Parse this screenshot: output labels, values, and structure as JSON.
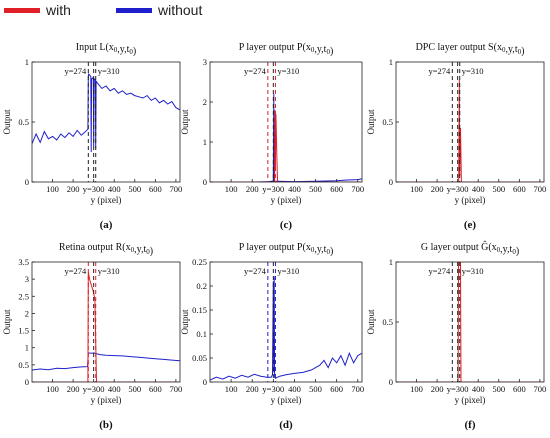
{
  "legend": {
    "items": [
      {
        "label": "with",
        "color": "#e01f26"
      },
      {
        "label": "without",
        "color": "#1f1fcc"
      }
    ]
  },
  "colors": {
    "with": "#e01f26",
    "without": "#1f1fcc",
    "axis": "#222222"
  },
  "chart_data": [
    {
      "id": "a",
      "panel_label": "(a)",
      "type": "line",
      "title": "Input L(x0,y,t0)",
      "xlabel": "y (pixel)",
      "ylabel": "Output",
      "xlim": [
        0,
        720
      ],
      "ylim": [
        0,
        1
      ],
      "xticks": [
        100,
        200,
        300,
        400,
        500,
        600,
        700
      ],
      "xtick_labels": [
        "100",
        "200",
        "y=300",
        "400",
        "500",
        "600",
        "700"
      ],
      "yticks": [
        0,
        0.5,
        1
      ],
      "ytick_labels": [
        "0",
        "0.5",
        "1"
      ],
      "dashed_markers": [
        {
          "x": 274,
          "color": "#222222",
          "label": "y=274"
        },
        {
          "x": 300,
          "color": "#222222",
          "label": ""
        },
        {
          "x": 310,
          "color": "#222222",
          "label": "y=310"
        }
      ],
      "series": [
        {
          "name": "without",
          "color": "#1f1fcc",
          "x": [
            0,
            20,
            40,
            60,
            80,
            100,
            120,
            140,
            160,
            180,
            200,
            220,
            240,
            260,
            272,
            274,
            276,
            286,
            288,
            290,
            298,
            300,
            302,
            308,
            310,
            312,
            320,
            340,
            360,
            380,
            400,
            420,
            440,
            460,
            480,
            500,
            520,
            540,
            560,
            580,
            600,
            620,
            640,
            660,
            680,
            700,
            720
          ],
          "y": [
            0.32,
            0.4,
            0.33,
            0.42,
            0.36,
            0.38,
            0.35,
            0.4,
            0.37,
            0.41,
            0.38,
            0.43,
            0.39,
            0.42,
            0.44,
            0.88,
            0.9,
            0.88,
            0.25,
            0.86,
            0.87,
            0.3,
            0.86,
            0.85,
            0.28,
            0.84,
            0.82,
            0.78,
            0.8,
            0.76,
            0.78,
            0.74,
            0.76,
            0.73,
            0.74,
            0.72,
            0.71,
            0.7,
            0.72,
            0.68,
            0.7,
            0.66,
            0.68,
            0.65,
            0.67,
            0.62,
            0.6
          ]
        }
      ]
    },
    {
      "id": "c",
      "panel_label": "(c)",
      "type": "line",
      "title": "P layer output P(x0,y,t0)",
      "xlabel": "y (pixel)",
      "ylabel": "Output",
      "xlim": [
        0,
        720
      ],
      "ylim": [
        0,
        3
      ],
      "xticks": [
        100,
        200,
        300,
        400,
        500,
        600,
        700
      ],
      "xtick_labels": [
        "100",
        "200",
        "y=300",
        "400",
        "500",
        "600",
        "700"
      ],
      "yticks": [
        0,
        1,
        2,
        3
      ],
      "ytick_labels": [
        "0",
        "1",
        "2",
        "3"
      ],
      "dashed_markers": [
        {
          "x": 274,
          "color": "#e01f26",
          "label": "y=274"
        },
        {
          "x": 300,
          "color": "#222222",
          "label": ""
        },
        {
          "x": 310,
          "color": "#e01f26",
          "label": "y=310"
        }
      ],
      "series": [
        {
          "name": "without",
          "color": "#1f1fcc",
          "x": [
            0,
            100,
            200,
            280,
            290,
            300,
            302,
            304,
            306,
            320,
            400,
            500,
            600,
            650,
            700,
            720
          ],
          "y": [
            0.0,
            0.0,
            0.0,
            0.01,
            0.02,
            0.02,
            2.2,
            0.05,
            0.02,
            0.02,
            0.01,
            0.02,
            0.03,
            0.05,
            0.06,
            0.08
          ]
        },
        {
          "name": "with",
          "color": "#e01f26",
          "x": [
            0,
            300,
            306,
            308,
            310,
            312,
            318,
            320,
            720
          ],
          "y": [
            0.0,
            0.0,
            0.0,
            1.8,
            0.3,
            1.7,
            0.4,
            0.0,
            0.0
          ]
        }
      ]
    },
    {
      "id": "e",
      "panel_label": "(e)",
      "type": "line",
      "title": "DPC layer output S(x0,y,t0)",
      "xlabel": "y (pixel)",
      "ylabel": "Output",
      "xlim": [
        0,
        720
      ],
      "ylim": [
        0,
        1
      ],
      "xticks": [
        100,
        200,
        300,
        400,
        500,
        600,
        700
      ],
      "xtick_labels": [
        "100",
        "200",
        "y=300",
        "400",
        "500",
        "600",
        "700"
      ],
      "yticks": [
        0,
        0.5,
        1
      ],
      "ytick_labels": [
        "0",
        "0.5",
        "1"
      ],
      "dashed_markers": [
        {
          "x": 274,
          "color": "#222222",
          "label": "y=274"
        },
        {
          "x": 300,
          "color": "#222222",
          "label": ""
        },
        {
          "x": 310,
          "color": "#222222",
          "label": "y=310"
        }
      ],
      "series": [
        {
          "name": "without",
          "color": "#1f1fcc",
          "x": [
            0,
            720
          ],
          "y": [
            0.0,
            0.0
          ]
        },
        {
          "name": "with",
          "color": "#e01f26",
          "x": [
            0,
            305,
            308,
            310,
            314,
            318,
            722
          ],
          "y": [
            0.0,
            0.0,
            0.85,
            0.05,
            0.45,
            0.0,
            0.0
          ]
        }
      ]
    },
    {
      "id": "b",
      "panel_label": "(b)",
      "type": "line",
      "title": "Retina output R(x0,y,t0)",
      "xlabel": "y (pixel)",
      "ylabel": "Output",
      "xlim": [
        0,
        720
      ],
      "ylim": [
        0,
        3.5
      ],
      "xticks": [
        100,
        200,
        300,
        400,
        500,
        600,
        700
      ],
      "xtick_labels": [
        "100",
        "200",
        "y=300",
        "400",
        "500",
        "600",
        "700"
      ],
      "yticks": [
        0,
        0.5,
        1,
        1.5,
        2,
        2.5,
        3,
        3.5
      ],
      "ytick_labels": [
        "0",
        "0.5",
        "1",
        "1.5",
        "2",
        "2.5",
        "3",
        "3.5"
      ],
      "dashed_markers": [
        {
          "x": 274,
          "color": "#e01f26",
          "label": "y=274"
        },
        {
          "x": 300,
          "color": "#222222",
          "label": ""
        },
        {
          "x": 310,
          "color": "#e01f26",
          "label": "y=310"
        }
      ],
      "series": [
        {
          "name": "without",
          "color": "#1f1fcc",
          "x": [
            0,
            40,
            80,
            120,
            160,
            200,
            240,
            270,
            274,
            290,
            300,
            310,
            330,
            360,
            400,
            440,
            480,
            520,
            560,
            600,
            640,
            680,
            720
          ],
          "y": [
            0.35,
            0.38,
            0.36,
            0.4,
            0.39,
            0.42,
            0.44,
            0.45,
            0.85,
            0.84,
            0.85,
            0.83,
            0.8,
            0.78,
            0.77,
            0.76,
            0.74,
            0.72,
            0.7,
            0.68,
            0.66,
            0.64,
            0.62
          ]
        },
        {
          "name": "with",
          "color": "#e01f26",
          "x": [
            0,
            270,
            272,
            274,
            280,
            290,
            300,
            306,
            310,
            314,
            720
          ],
          "y": [
            0.0,
            0.0,
            0.0,
            3.2,
            3.0,
            2.8,
            2.6,
            2.4,
            1.2,
            0.0,
            0.0
          ]
        }
      ]
    },
    {
      "id": "d",
      "panel_label": "(d)",
      "type": "line",
      "title": "P layer output P(x0,y,t0)",
      "xlabel": "y (pixel)",
      "ylabel": "Output",
      "xlim": [
        0,
        720
      ],
      "ylim": [
        0,
        0.25
      ],
      "xticks": [
        100,
        200,
        300,
        400,
        500,
        600,
        700
      ],
      "xtick_labels": [
        "100",
        "200",
        "y=300",
        "400",
        "500",
        "600",
        "700"
      ],
      "yticks": [
        0,
        0.05,
        0.1,
        0.15,
        0.2,
        0.25
      ],
      "ytick_labels": [
        "0",
        "0.05",
        "0.1",
        "0.15",
        "0.2",
        "0.25"
      ],
      "dashed_markers": [
        {
          "x": 274,
          "color": "#1f1fcc",
          "label": "y=274"
        },
        {
          "x": 300,
          "color": "#222222",
          "label": ""
        },
        {
          "x": 310,
          "color": "#1f1fcc",
          "label": "y=310"
        }
      ],
      "series": [
        {
          "name": "without",
          "color": "#1f1fcc",
          "x": [
            0,
            30,
            60,
            90,
            120,
            150,
            180,
            210,
            240,
            270,
            290,
            296,
            300,
            302,
            304,
            306,
            310,
            330,
            360,
            400,
            440,
            480,
            500,
            520,
            540,
            560,
            580,
            600,
            620,
            640,
            660,
            680,
            700,
            720
          ],
          "y": [
            0.004,
            0.01,
            0.006,
            0.012,
            0.008,
            0.014,
            0.01,
            0.016,
            0.012,
            0.01,
            0.01,
            0.015,
            0.21,
            0.02,
            0.22,
            0.01,
            0.008,
            0.012,
            0.015,
            0.018,
            0.02,
            0.025,
            0.03,
            0.035,
            0.045,
            0.03,
            0.05,
            0.04,
            0.055,
            0.035,
            0.06,
            0.04,
            0.055,
            0.06
          ]
        }
      ]
    },
    {
      "id": "f",
      "panel_label": "(f)",
      "type": "line",
      "title": "G layer output Ĝ(x0,y,t0)",
      "xlabel": "y (pixel)",
      "ylabel": "Output",
      "xlim": [
        0,
        720
      ],
      "ylim": [
        0,
        1
      ],
      "xticks": [
        100,
        200,
        300,
        400,
        500,
        600,
        700
      ],
      "xtick_labels": [
        "100",
        "200",
        "y=300",
        "400",
        "500",
        "600",
        "700"
      ],
      "yticks": [
        0,
        0.5,
        1
      ],
      "ytick_labels": [
        "0",
        "0.5",
        "1"
      ],
      "dashed_markers": [
        {
          "x": 274,
          "color": "#222222",
          "label": "y=274"
        },
        {
          "x": 300,
          "color": "#222222",
          "label": ""
        },
        {
          "x": 310,
          "color": "#222222",
          "label": "y=310"
        }
      ],
      "series": [
        {
          "name": "without",
          "color": "#1f1fcc",
          "x": [
            0,
            720
          ],
          "y": [
            0.0,
            0.0
          ]
        },
        {
          "name": "with",
          "color": "#e01f26",
          "x": [
            0,
            302,
            304,
            314,
            316,
            720
          ],
          "y": [
            0.0,
            0.0,
            1.0,
            1.0,
            0.0,
            0.0
          ]
        }
      ]
    }
  ]
}
